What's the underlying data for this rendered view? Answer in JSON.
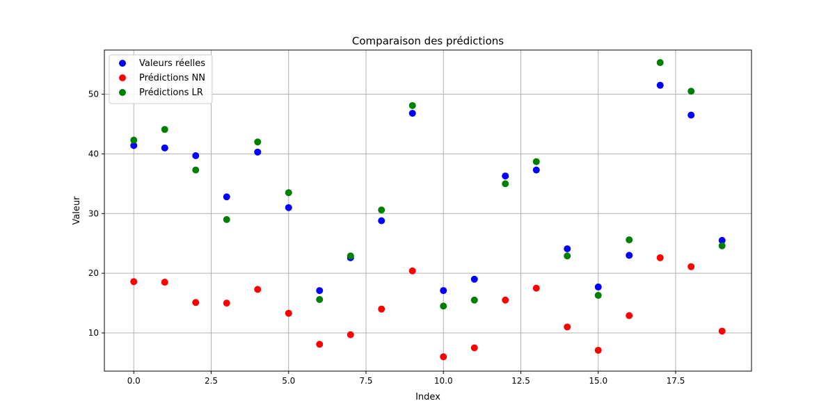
{
  "chart_data": {
    "type": "scatter",
    "title": "Comparaison des prédictions",
    "xlabel": "Index",
    "ylabel": "Valeur",
    "xlim": [
      -0.95,
      19.95
    ],
    "ylim": [
      3.6,
      57.4
    ],
    "xticks": [
      0,
      2.5,
      5,
      7.5,
      10,
      12.5,
      15,
      17.5
    ],
    "xtick_labels": [
      "0.0",
      "2.5",
      "5.0",
      "7.5",
      "10.0",
      "12.5",
      "15.0",
      "17.5"
    ],
    "yticks": [
      10,
      20,
      30,
      40,
      50
    ],
    "ytick_labels": [
      "10",
      "20",
      "30",
      "40",
      "50"
    ],
    "grid": true,
    "legend_position": "top-left",
    "x": [
      0,
      1,
      2,
      3,
      4,
      5,
      6,
      7,
      8,
      9,
      10,
      11,
      12,
      13,
      14,
      15,
      16,
      17,
      18,
      19
    ],
    "series": [
      {
        "name": "Valeurs réelles",
        "color": "#0000ff",
        "values": [
          41.4,
          41.0,
          39.7,
          32.8,
          40.3,
          31.0,
          17.1,
          22.6,
          28.8,
          46.8,
          17.1,
          19.0,
          36.3,
          37.3,
          24.1,
          17.7,
          23.0,
          51.5,
          46.5,
          25.5
        ]
      },
      {
        "name": "Prédictions NN",
        "color": "#ff0000",
        "values": [
          18.6,
          18.5,
          15.1,
          15.0,
          17.3,
          13.3,
          8.1,
          9.7,
          14.0,
          20.4,
          6.0,
          7.5,
          15.5,
          17.5,
          11.0,
          7.1,
          12.9,
          22.6,
          21.1,
          10.3
        ]
      },
      {
        "name": "Prédictions LR",
        "color": "#008000",
        "values": [
          42.3,
          44.1,
          37.3,
          29.0,
          42.0,
          33.5,
          15.6,
          22.9,
          30.6,
          48.1,
          14.5,
          15.5,
          35.0,
          38.7,
          22.9,
          16.3,
          25.6,
          55.3,
          50.5,
          24.6
        ]
      }
    ]
  }
}
